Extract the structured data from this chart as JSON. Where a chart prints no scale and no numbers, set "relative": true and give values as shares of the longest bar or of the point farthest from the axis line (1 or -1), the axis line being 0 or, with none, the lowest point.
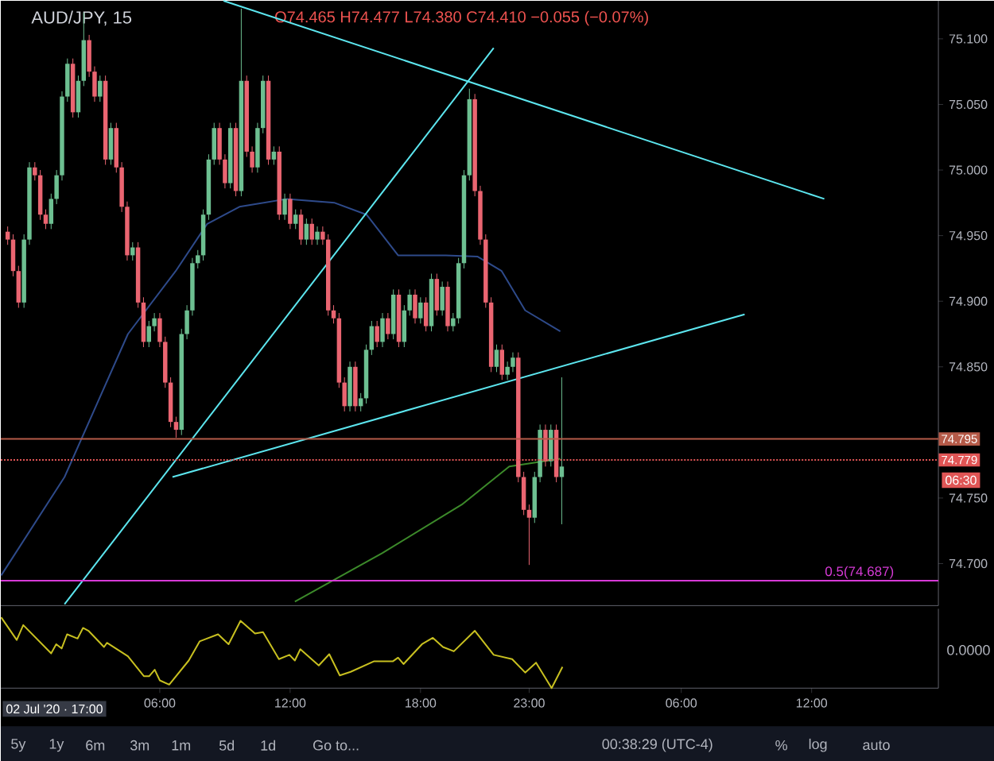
{
  "chart_data": [
    {
      "type": "candlestick",
      "title": "AUD/JPY, 15",
      "subtitle": "O74.465 H74.477 L74.380 C74.410 −0.055 (−0.07%)",
      "x": [
        "2020-07-02T23:00",
        "2020-07-02T23:15",
        "2020-07-02T23:30",
        "2020-07-02T23:45",
        "2020-07-03T00:00",
        "2020-07-03T00:15",
        "2020-07-03T00:30",
        "2020-07-03T00:45",
        "2020-07-03T01:00",
        "2020-07-03T01:15",
        "2020-07-03T01:30",
        "2020-07-03T01:45",
        "2020-07-03T02:00",
        "2020-07-03T02:15",
        "2020-07-03T02:30",
        "2020-07-03T02:45",
        "2020-07-03T03:00",
        "2020-07-03T03:15",
        "2020-07-03T03:30",
        "2020-07-03T03:45",
        "2020-07-03T04:00",
        "2020-07-03T04:15",
        "2020-07-03T04:30",
        "2020-07-03T04:45",
        "2020-07-03T05:00",
        "2020-07-03T05:15",
        "2020-07-03T05:30",
        "2020-07-03T05:45",
        "2020-07-03T06:00",
        "2020-07-03T06:15",
        "2020-07-03T06:30",
        "2020-07-03T06:45",
        "2020-07-03T07:00",
        "2020-07-03T07:15",
        "2020-07-03T07:30",
        "2020-07-03T07:45",
        "2020-07-03T08:00",
        "2020-07-03T08:15",
        "2020-07-03T08:30",
        "2020-07-03T08:45",
        "2020-07-03T09:00",
        "2020-07-03T09:15",
        "2020-07-03T09:30",
        "2020-07-03T09:45",
        "2020-07-03T10:00",
        "2020-07-03T10:15",
        "2020-07-03T10:30",
        "2020-07-03T10:45",
        "2020-07-03T11:00",
        "2020-07-03T11:15",
        "2020-07-03T11:30",
        "2020-07-03T11:45",
        "2020-07-03T12:00",
        "2020-07-03T12:15",
        "2020-07-03T12:30",
        "2020-07-03T12:45",
        "2020-07-03T13:00",
        "2020-07-03T13:15",
        "2020-07-03T13:30",
        "2020-07-03T13:45",
        "2020-07-03T14:00",
        "2020-07-03T14:15",
        "2020-07-03T14:30",
        "2020-07-03T14:45",
        "2020-07-03T15:00",
        "2020-07-03T15:15",
        "2020-07-03T15:30",
        "2020-07-03T15:45",
        "2020-07-03T16:00",
        "2020-07-03T16:15",
        "2020-07-03T16:30",
        "2020-07-03T16:45",
        "2020-07-03T17:00",
        "2020-07-03T17:15",
        "2020-07-03T17:30",
        "2020-07-03T17:45",
        "2020-07-03T18:00",
        "2020-07-03T18:15",
        "2020-07-03T18:30",
        "2020-07-03T18:45",
        "2020-07-03T19:00",
        "2020-07-03T19:15",
        "2020-07-03T19:30",
        "2020-07-03T19:45",
        "2020-07-03T20:00",
        "2020-07-03T20:15",
        "2020-07-03T20:30",
        "2020-07-03T20:45",
        "2020-07-03T21:00",
        "2020-07-03T21:15",
        "2020-07-03T21:30",
        "2020-07-03T21:45",
        "2020-07-03T22:00",
        "2020-07-03T22:15",
        "2020-07-03T22:30",
        "2020-07-03T22:45",
        "2020-07-03T23:00",
        "2020-07-03T23:15",
        "2020-07-03T23:30",
        "2020-07-03T23:45",
        "2020-07-04T00:00",
        "2020-07-04T00:15",
        "2020-07-04T00:30"
      ],
      "ohlc": [
        [
          74.953,
          74.957,
          74.943,
          74.947
        ],
        [
          74.947,
          74.951,
          74.919,
          74.923
        ],
        [
          74.923,
          74.927,
          74.895,
          74.899
        ],
        [
          74.899,
          74.951,
          74.895,
          74.947
        ],
        [
          74.947,
          75.006,
          74.943,
          75.002
        ],
        [
          75.002,
          75.006,
          74.992,
          74.996
        ],
        [
          74.996,
          75.0,
          74.962,
          74.966
        ],
        [
          74.966,
          74.97,
          74.955,
          74.959
        ],
        [
          74.959,
          74.982,
          74.955,
          74.978
        ],
        [
          74.978,
          75.0,
          74.974,
          74.996
        ],
        [
          74.996,
          75.06,
          74.992,
          75.056
        ],
        [
          75.056,
          75.085,
          75.052,
          75.081
        ],
        [
          75.081,
          75.085,
          75.04,
          75.044
        ],
        [
          75.044,
          75.072,
          75.04,
          75.068
        ],
        [
          75.068,
          75.12,
          75.064,
          75.099
        ],
        [
          75.099,
          75.103,
          75.071,
          75.075
        ],
        [
          75.075,
          75.079,
          75.052,
          75.056
        ],
        [
          75.056,
          75.072,
          75.052,
          75.068
        ],
        [
          75.068,
          75.072,
          75.004,
          75.008
        ],
        [
          75.008,
          75.036,
          75.004,
          75.032
        ],
        [
          75.032,
          75.036,
          74.998,
          75.002
        ],
        [
          75.002,
          75.006,
          74.968,
          74.972
        ],
        [
          74.972,
          74.976,
          74.931,
          74.935
        ],
        [
          74.935,
          74.945,
          74.931,
          74.941
        ],
        [
          74.941,
          74.945,
          74.895,
          74.899
        ],
        [
          74.899,
          74.903,
          74.865,
          74.869
        ],
        [
          74.869,
          74.885,
          74.865,
          74.881
        ],
        [
          74.881,
          74.891,
          74.877,
          74.887
        ],
        [
          74.887,
          74.891,
          74.865,
          74.869
        ],
        [
          74.869,
          74.873,
          74.834,
          74.838
        ],
        [
          74.838,
          74.842,
          74.804,
          74.808
        ],
        [
          74.808,
          74.812,
          74.796,
          74.802
        ],
        [
          74.802,
          74.879,
          74.798,
          74.875
        ],
        [
          74.875,
          74.897,
          74.871,
          74.893
        ],
        [
          74.893,
          74.933,
          74.889,
          74.929
        ],
        [
          74.929,
          74.939,
          74.925,
          74.935
        ],
        [
          74.935,
          74.97,
          74.931,
          74.966
        ],
        [
          74.966,
          75.012,
          74.962,
          75.008
        ],
        [
          75.008,
          75.036,
          75.004,
          75.032
        ],
        [
          75.032,
          75.036,
          75.004,
          75.008
        ],
        [
          75.008,
          75.012,
          74.986,
          74.99
        ],
        [
          74.99,
          75.036,
          74.986,
          75.032
        ],
        [
          75.032,
          75.036,
          74.98,
          74.984
        ],
        [
          74.984,
          75.123,
          74.98,
          75.068
        ],
        [
          75.068,
          75.072,
          75.01,
          75.014
        ],
        [
          75.014,
          75.018,
          74.998,
          75.002
        ],
        [
          75.002,
          75.036,
          74.998,
          75.032
        ],
        [
          75.032,
          75.072,
          75.028,
          75.068
        ],
        [
          75.068,
          75.072,
          75.004,
          75.008
        ],
        [
          75.008,
          75.018,
          75.004,
          75.014
        ],
        [
          75.014,
          75.018,
          74.962,
          74.966
        ],
        [
          74.966,
          74.982,
          74.962,
          74.978
        ],
        [
          74.978,
          74.982,
          74.955,
          74.959
        ],
        [
          74.959,
          74.97,
          74.955,
          74.966
        ],
        [
          74.966,
          74.97,
          74.943,
          74.947
        ],
        [
          74.947,
          74.963,
          74.943,
          74.959
        ],
        [
          74.959,
          74.963,
          74.943,
          74.947
        ],
        [
          74.947,
          74.957,
          74.943,
          74.953
        ],
        [
          74.953,
          74.957,
          74.943,
          74.947
        ],
        [
          74.947,
          74.951,
          74.889,
          74.893
        ],
        [
          74.893,
          74.897,
          74.883,
          74.887
        ],
        [
          74.887,
          74.891,
          74.834,
          74.838
        ],
        [
          74.838,
          74.842,
          74.816,
          74.82
        ],
        [
          74.82,
          74.854,
          74.816,
          74.85
        ],
        [
          74.85,
          74.854,
          74.816,
          74.82
        ],
        [
          74.82,
          74.83,
          74.816,
          74.826
        ],
        [
          74.826,
          74.867,
          74.822,
          74.863
        ],
        [
          74.863,
          74.885,
          74.859,
          74.881
        ],
        [
          74.881,
          74.885,
          74.865,
          74.869
        ],
        [
          74.869,
          74.891,
          74.865,
          74.887
        ],
        [
          74.887,
          74.891,
          74.871,
          74.875
        ],
        [
          74.875,
          74.909,
          74.871,
          74.905
        ],
        [
          74.905,
          74.909,
          74.865,
          74.869
        ],
        [
          74.869,
          74.897,
          74.865,
          74.893
        ],
        [
          74.893,
          74.909,
          74.889,
          74.905
        ],
        [
          74.905,
          74.909,
          74.883,
          74.887
        ],
        [
          74.887,
          74.903,
          74.883,
          74.899
        ],
        [
          74.899,
          74.903,
          74.877,
          74.881
        ],
        [
          74.881,
          74.921,
          74.877,
          74.917
        ],
        [
          74.917,
          74.921,
          74.889,
          74.893
        ],
        [
          74.893,
          74.915,
          74.889,
          74.911
        ],
        [
          74.911,
          74.915,
          74.877,
          74.881
        ],
        [
          74.881,
          74.891,
          74.877,
          74.887
        ],
        [
          74.887,
          74.933,
          74.883,
          74.929
        ],
        [
          74.929,
          75.0,
          74.925,
          74.996
        ],
        [
          74.996,
          75.062,
          74.992,
          75.054
        ],
        [
          75.054,
          75.058,
          74.98,
          74.984
        ],
        [
          74.984,
          74.988,
          74.943,
          74.947
        ],
        [
          74.947,
          74.951,
          74.895,
          74.899
        ],
        [
          74.899,
          74.903,
          74.846,
          74.85
        ],
        [
          74.85,
          74.867,
          74.846,
          74.863
        ],
        [
          74.863,
          74.867,
          74.84,
          74.844
        ],
        [
          74.844,
          74.854,
          74.84,
          74.85
        ],
        [
          74.85,
          74.861,
          74.846,
          74.857
        ],
        [
          74.857,
          74.861,
          74.762,
          74.766
        ],
        [
          74.766,
          74.77,
          74.737,
          74.741
        ],
        [
          74.741,
          74.745,
          74.699,
          74.735
        ],
        [
          74.735,
          74.77,
          74.731,
          74.766
        ],
        [
          74.766,
          74.806,
          74.762,
          74.802
        ],
        [
          74.802,
          74.806,
          74.774,
          74.778
        ],
        [
          74.778,
          74.806,
          74.774,
          74.802
        ],
        [
          74.802,
          74.806,
          74.762,
          74.766
        ],
        [
          74.766,
          74.842,
          74.73,
          74.774
        ]
      ],
      "series": [
        {
          "type": "line",
          "color": "#2e4a8a",
          "x": [
            "2020-07-02T22:42",
            "2020-07-03T01:37",
            "2020-07-03T04:32",
            "2020-07-03T06:44",
            "2020-07-03T08:11",
            "2020-07-03T09:40",
            "2020-07-03T11:51",
            "2020-07-03T14:03",
            "2020-07-03T15:31",
            "2020-07-03T16:58",
            "2020-07-03T19:10",
            "2020-07-03T20:38",
            "2020-07-03T21:44",
            "2020-07-03T22:49",
            "2020-07-04T00:26"
          ],
          "values": [
            74.691,
            74.766,
            74.875,
            74.923,
            74.959,
            74.972,
            74.978,
            74.975,
            74.966,
            74.935,
            74.935,
            74.934,
            74.923,
            74.893,
            74.877
          ]
        },
        {
          "type": "line",
          "color": "#3c8a2a",
          "x": [
            "2020-07-03T12:13",
            "2020-07-03T16:14",
            "2020-07-03T19:54",
            "2020-07-03T22:05",
            "2020-07-04T00:26"
          ],
          "values": [
            74.671,
            74.708,
            74.745,
            74.774,
            74.78
          ]
        },
        {
          "type": "line",
          "color": "#5ce6ef",
          "x": [
            "2020-07-03T01:37",
            "2020-07-03T21:22"
          ],
          "values": [
            74.669,
            75.093
          ]
        },
        {
          "type": "line",
          "color": "#5ce6ef",
          "x": [
            "2020-07-03T06:35",
            "2020-07-04T08:55"
          ],
          "values": [
            74.766,
            74.89
          ]
        },
        {
          "type": "line",
          "color": "#5ce6ef",
          "x": [
            "2020-07-03T08:56",
            "2020-07-04T12:35"
          ],
          "values": [
            75.129,
            74.978
          ]
        }
      ],
      "xlim": [
        "2020-07-02T22:41",
        "2020-07-04T17:50"
      ],
      "xticks": [
        {
          "value": "2020-07-03T06:00",
          "label": null
        },
        {
          "value": "2020-07-03T12:00",
          "label": null
        },
        {
          "value": "2020-07-03T18:00",
          "label": null
        },
        {
          "value": "2020-07-03T23:00",
          "label": null
        },
        {
          "value": "2020-07-04T06:00",
          "label": null
        },
        {
          "value": "2020-07-04T12:00",
          "label": null
        }
      ],
      "ylim": [
        74.668,
        75.129
      ],
      "yticks": [
        {
          "value": 74.7,
          "label": "74.700"
        },
        {
          "value": 74.75,
          "label": "74.750"
        },
        {
          "value": 74.85,
          "label": "74.850"
        },
        {
          "value": 74.9,
          "label": "74.900"
        },
        {
          "value": 74.95,
          "label": "74.950"
        },
        {
          "value": 75.0,
          "label": "75.000"
        },
        {
          "value": 75.05,
          "label": "75.050"
        },
        {
          "value": 75.1,
          "label": "75.100"
        }
      ],
      "tick_labels": "y",
      "ref_lines": [
        {
          "axis": "y",
          "value": 74.795,
          "label": "74.795",
          "color": "#b55a48",
          "line_style": "solid"
        },
        {
          "axis": "y",
          "value": 74.779,
          "label": "74.779",
          "color": "#e05555",
          "line_style": "dotted"
        },
        {
          "axis": "y",
          "value": 74.687,
          "color": "#d63ad6",
          "line_style": "solid"
        }
      ],
      "annotations": [
        "06:30",
        {
          "text": "0.5(74.687)",
          "x": "2020-07-04T14:12",
          "y": 74.687
        }
      ]
    },
    {
      "type": "line",
      "relative": true,
      "series": [
        {
          "color": "#c8c020",
          "x": [
            "2020-07-02T22:42",
            "2020-07-02T23:25",
            "2020-07-02T23:43",
            "2020-07-03T01:00",
            "2020-07-03T01:14",
            "2020-07-03T01:29",
            "2020-07-03T01:44",
            "2020-07-03T02:13",
            "2020-07-03T02:28",
            "2020-07-03T02:43",
            "2020-07-03T03:26",
            "2020-07-03T03:34",
            "2020-07-03T04:32",
            "2020-07-03T05:16",
            "2020-07-03T05:31",
            "2020-07-03T05:46",
            "2020-07-03T06:00",
            "2020-07-03T06:26",
            "2020-07-03T07:20",
            "2020-07-03T07:50",
            "2020-07-03T08:41",
            "2020-07-03T09:10",
            "2020-07-03T09:43",
            "2020-07-03T10:23",
            "2020-07-03T10:45",
            "2020-07-03T11:29",
            "2020-07-03T11:58",
            "2020-07-03T12:13",
            "2020-07-03T12:28",
            "2020-07-03T13:19",
            "2020-07-03T13:48",
            "2020-07-03T14:17",
            "2020-07-03T14:47",
            "2020-07-03T15:52",
            "2020-07-03T16:44",
            "2020-07-03T16:58",
            "2020-07-03T17:13",
            "2020-07-03T18:04",
            "2020-07-03T18:34",
            "2020-07-03T19:02",
            "2020-07-03T19:32",
            "2020-07-03T20:30",
            "2020-07-03T21:22",
            "2020-07-03T22:13",
            "2020-07-03T22:49",
            "2020-07-03T23:19",
            "2020-07-04T00:02",
            "2020-07-04T00:32"
          ],
          "values": [
            1.0,
            0.68,
            0.89,
            0.49,
            0.62,
            0.56,
            0.76,
            0.7,
            0.85,
            0.81,
            0.58,
            0.64,
            0.45,
            0.17,
            0.17,
            0.26,
            0.11,
            0.05,
            0.39,
            0.66,
            0.76,
            0.62,
            0.95,
            0.77,
            0.79,
            0.41,
            0.47,
            0.39,
            0.55,
            0.32,
            0.48,
            0.18,
            0.23,
            0.38,
            0.38,
            0.43,
            0.34,
            0.62,
            0.71,
            0.58,
            0.52,
            0.81,
            0.47,
            0.41,
            0.22,
            0.36,
            0.0,
            0.3
          ]
        }
      ],
      "xlim": [
        "2020-07-02T22:41",
        "2020-07-04T17:50"
      ],
      "xticks": [
        {
          "value": "2020-07-03T06:00",
          "label": "06:00"
        },
        {
          "value": "2020-07-03T12:00",
          "label": "12:00"
        },
        {
          "value": "2020-07-03T18:00",
          "label": "18:00"
        },
        {
          "value": "2020-07-03T23:00",
          "label": "23:00"
        },
        {
          "value": "2020-07-04T06:00",
          "label": "06:00"
        },
        {
          "value": "2020-07-04T12:00",
          "label": "12:00"
        }
      ],
      "tick_labels": "x",
      "annotations": [
        "0.0000",
        "02 Jul '20 · 17:00",
        "5y",
        "1y",
        "6m",
        "3m",
        "1m",
        "5d",
        "1d",
        "Go to...",
        "00:38:29 (UTC-4)",
        "%",
        "log",
        "auto"
      ]
    }
  ]
}
